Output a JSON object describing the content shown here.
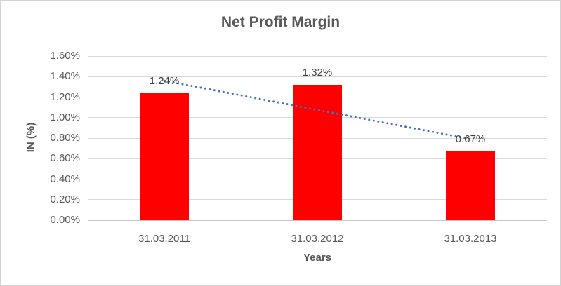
{
  "window": {
    "background": "#FFFFFF",
    "border_color": "#D3D3D3"
  },
  "chart_data": {
    "type": "bar",
    "title": "Net Profit Margin",
    "xlabel": "Years",
    "ylabel": "IN (%)",
    "categories": [
      "31.03.2011",
      "31.03.2012",
      "31.03.2013"
    ],
    "series": [
      {
        "name": "Net Profit Margin",
        "values": [
          1.24,
          1.32,
          0.67
        ],
        "data_labels": [
          "1.24%",
          "1.32%",
          "0.67%"
        ],
        "color": "#FF0000"
      }
    ],
    "ylim": [
      0,
      1.6
    ],
    "ytick_step": 0.2,
    "yticks": [
      {
        "value": 0.0,
        "label": "0.00%"
      },
      {
        "value": 0.2,
        "label": "0.20%"
      },
      {
        "value": 0.4,
        "label": "0.40%"
      },
      {
        "value": 0.6,
        "label": "0.60%"
      },
      {
        "value": 0.8,
        "label": "0.80%"
      },
      {
        "value": 1.0,
        "label": "1.00%"
      },
      {
        "value": 1.2,
        "label": "1.20%"
      },
      {
        "value": 1.4,
        "label": "1.40%"
      },
      {
        "value": 1.6,
        "label": "1.60%"
      }
    ],
    "grid": true,
    "legend": "none",
    "gridline_color": "#D9D9D9",
    "axis_line_color": "#C6C6C6",
    "trendline": {
      "type": "linear",
      "style": "dotted",
      "color": "#4472C4",
      "start_value": 1.36,
      "end_value": 0.79
    },
    "text_colors": {
      "title": "#595959",
      "axis_titles": "#595959",
      "tick_labels": "#595959",
      "data_labels": "#3F3F3F"
    }
  }
}
